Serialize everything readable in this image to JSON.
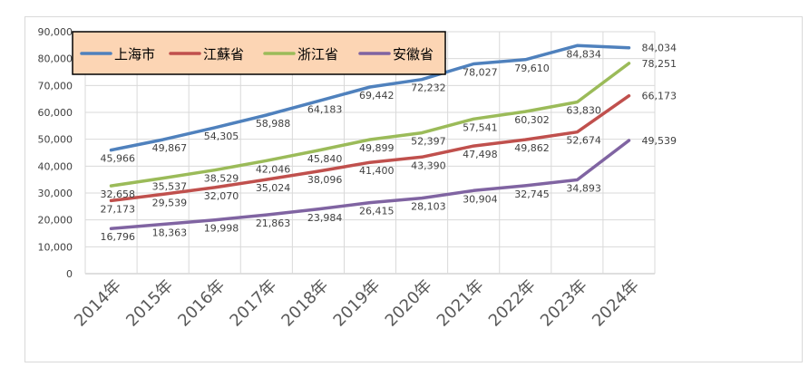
{
  "chart_data": {
    "type": "line",
    "title": "",
    "xlabel": "",
    "ylabel": "",
    "ylim": [
      0,
      90000
    ],
    "yticks": [
      0,
      10000,
      20000,
      30000,
      40000,
      50000,
      60000,
      70000,
      80000,
      90000
    ],
    "ytick_labels": [
      "0",
      "10,000",
      "20,000",
      "30,000",
      "40,000",
      "50,000",
      "60,000",
      "70,000",
      "80,000",
      "90,000"
    ],
    "grid": "horizontal and vertical",
    "legend_position": "top-left",
    "categories": [
      "2014年",
      "2015年",
      "2016年",
      "2017年",
      "2018年",
      "2019年",
      "2020年",
      "2021年",
      "2022年",
      "2023年",
      "2024年"
    ],
    "series": [
      {
        "name": "上海市",
        "color": "#4f81bd",
        "values": [
          45966,
          49867,
          54305,
          58988,
          64183,
          69442,
          72232,
          78027,
          79610,
          84834,
          84034
        ],
        "labels": [
          "45,966",
          "49,867",
          "54,305",
          "58,988",
          "64,183",
          "69,442",
          "72,232",
          "78,027",
          "79,610",
          "84,834",
          "84,034"
        ]
      },
      {
        "name": "江蘇省",
        "color": "#c0504d",
        "values": [
          27173,
          29539,
          32070,
          35024,
          38096,
          41400,
          43390,
          47498,
          49862,
          52674,
          66173
        ],
        "labels": [
          "27,173",
          "29,539",
          "32,070",
          "35,024",
          "38,096",
          "41,400",
          "43,390",
          "47,498",
          "49,862",
          "52,674",
          "66,173"
        ]
      },
      {
        "name": "浙江省",
        "color": "#9bbb59",
        "values": [
          32658,
          35537,
          38529,
          42046,
          45840,
          49899,
          52397,
          57541,
          60302,
          63830,
          78251
        ],
        "labels": [
          "32,658",
          "35,537",
          "38,529",
          "42,046",
          "45,840",
          "49,899",
          "52,397",
          "57,541",
          "60,302",
          "63,830",
          "78,251"
        ]
      },
      {
        "name": "安徽省",
        "color": "#8064a2",
        "values": [
          16796,
          18363,
          19998,
          21863,
          23984,
          26415,
          28103,
          30904,
          32745,
          34893,
          49539
        ],
        "labels": [
          "16,796",
          "18,363",
          "19,998",
          "21,863",
          "23,984",
          "26,415",
          "28,103",
          "30,904",
          "32,745",
          "34,893",
          "49,539"
        ]
      }
    ]
  }
}
